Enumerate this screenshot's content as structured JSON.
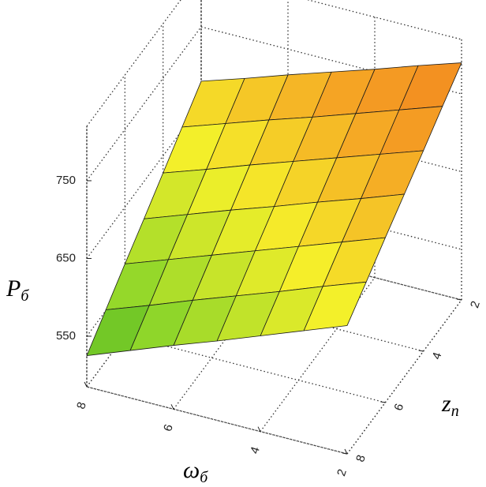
{
  "chart_data": {
    "type": "surface",
    "xlabel": {
      "symbol": "ω",
      "subscript": "б"
    },
    "ylabel": {
      "symbol": "z",
      "subscript": "n"
    },
    "zlabel": {
      "symbol": "P",
      "subscript": "б"
    },
    "x": [
      2,
      3,
      4,
      5,
      6,
      7,
      8
    ],
    "y": [
      2,
      3,
      4,
      5,
      6,
      7,
      8
    ],
    "z": [
      [
        790,
        772,
        753,
        735,
        717,
        698,
        680
      ],
      [
        767,
        748,
        729,
        710,
        692,
        673,
        654
      ],
      [
        743,
        724,
        705,
        686,
        667,
        647,
        628
      ],
      [
        720,
        700,
        681,
        661,
        642,
        622,
        602
      ],
      [
        697,
        677,
        657,
        637,
        617,
        597,
        577
      ],
      [
        673,
        653,
        632,
        612,
        592,
        571,
        551
      ],
      [
        650,
        629,
        608,
        587,
        567,
        546,
        525
      ]
    ],
    "xlim": [
      2,
      8
    ],
    "ylim": [
      2,
      8
    ],
    "zlim": [
      485,
      820
    ],
    "xticks": [
      2,
      4,
      6,
      8
    ],
    "yticks": [
      2,
      4,
      6,
      8
    ],
    "zticks": [
      550,
      650,
      750
    ],
    "grid": true,
    "colormap": [
      "#1e9b1e",
      "#8fd62a",
      "#f5f02a",
      "#f5a024",
      "#f07a1c"
    ]
  }
}
